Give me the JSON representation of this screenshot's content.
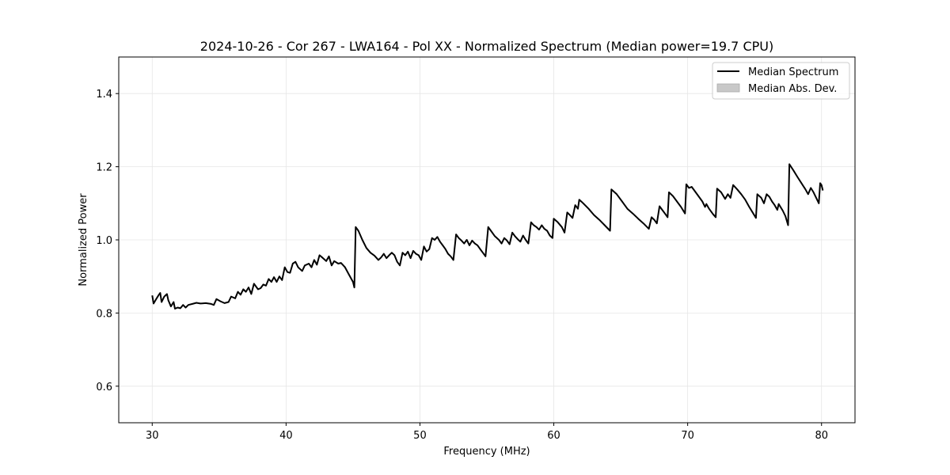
{
  "chart_data": {
    "type": "line",
    "title": "2024-10-26 - Cor 267 - LWA164 - Pol XX - Normalized Spectrum (Median power=19.7 CPU)",
    "xlabel": "Frequency (MHz)",
    "ylabel": "Normalized Power",
    "xlim": [
      27.5,
      82.5
    ],
    "ylim": [
      0.5,
      1.5
    ],
    "xticks": [
      30,
      40,
      50,
      60,
      70,
      80
    ],
    "yticks": [
      0.6,
      0.8,
      1.0,
      1.2,
      1.4
    ],
    "grid": true,
    "legend_position": "top-right",
    "legend": [
      "Median Spectrum",
      "Median Abs. Dev."
    ],
    "series": [
      {
        "name": "Median Spectrum",
        "color": "#000000",
        "points": [
          [
            30.0,
            0.848
          ],
          [
            30.1,
            0.826
          ],
          [
            30.3,
            0.838
          ],
          [
            30.5,
            0.85
          ],
          [
            30.6,
            0.855
          ],
          [
            30.7,
            0.83
          ],
          [
            30.9,
            0.845
          ],
          [
            31.1,
            0.852
          ],
          [
            31.2,
            0.835
          ],
          [
            31.4,
            0.818
          ],
          [
            31.6,
            0.83
          ],
          [
            31.7,
            0.812
          ],
          [
            31.9,
            0.815
          ],
          [
            32.1,
            0.813
          ],
          [
            32.3,
            0.822
          ],
          [
            32.5,
            0.815
          ],
          [
            32.7,
            0.822
          ],
          [
            33.0,
            0.825
          ],
          [
            33.3,
            0.828
          ],
          [
            33.6,
            0.826
          ],
          [
            34.0,
            0.827
          ],
          [
            34.4,
            0.825
          ],
          [
            34.6,
            0.822
          ],
          [
            34.8,
            0.838
          ],
          [
            35.1,
            0.832
          ],
          [
            35.4,
            0.827
          ],
          [
            35.7,
            0.83
          ],
          [
            35.9,
            0.845
          ],
          [
            36.2,
            0.84
          ],
          [
            36.4,
            0.858
          ],
          [
            36.6,
            0.85
          ],
          [
            36.8,
            0.865
          ],
          [
            37.0,
            0.858
          ],
          [
            37.2,
            0.87
          ],
          [
            37.4,
            0.852
          ],
          [
            37.6,
            0.88
          ],
          [
            37.9,
            0.865
          ],
          [
            38.1,
            0.868
          ],
          [
            38.3,
            0.878
          ],
          [
            38.5,
            0.875
          ],
          [
            38.7,
            0.893
          ],
          [
            38.9,
            0.885
          ],
          [
            39.1,
            0.898
          ],
          [
            39.3,
            0.885
          ],
          [
            39.5,
            0.9
          ],
          [
            39.7,
            0.89
          ],
          [
            39.9,
            0.925
          ],
          [
            40.1,
            0.912
          ],
          [
            40.3,
            0.91
          ],
          [
            40.5,
            0.935
          ],
          [
            40.7,
            0.94
          ],
          [
            40.9,
            0.925
          ],
          [
            41.2,
            0.915
          ],
          [
            41.4,
            0.93
          ],
          [
            41.7,
            0.935
          ],
          [
            41.9,
            0.925
          ],
          [
            42.1,
            0.945
          ],
          [
            42.3,
            0.932
          ],
          [
            42.5,
            0.958
          ],
          [
            42.7,
            0.952
          ],
          [
            43.0,
            0.942
          ],
          [
            43.2,
            0.955
          ],
          [
            43.4,
            0.93
          ],
          [
            43.6,
            0.942
          ],
          [
            43.9,
            0.935
          ],
          [
            44.1,
            0.937
          ],
          [
            44.4,
            0.925
          ],
          [
            44.7,
            0.905
          ],
          [
            45.0,
            0.885
          ],
          [
            45.1,
            0.87
          ],
          [
            45.2,
            1.035
          ],
          [
            45.4,
            1.025
          ],
          [
            45.7,
            1.0
          ],
          [
            46.0,
            0.978
          ],
          [
            46.3,
            0.965
          ],
          [
            46.6,
            0.957
          ],
          [
            46.9,
            0.945
          ],
          [
            47.1,
            0.952
          ],
          [
            47.3,
            0.962
          ],
          [
            47.5,
            0.95
          ],
          [
            47.7,
            0.958
          ],
          [
            47.9,
            0.965
          ],
          [
            48.1,
            0.958
          ],
          [
            48.3,
            0.94
          ],
          [
            48.5,
            0.93
          ],
          [
            48.7,
            0.965
          ],
          [
            48.9,
            0.958
          ],
          [
            49.1,
            0.968
          ],
          [
            49.3,
            0.95
          ],
          [
            49.5,
            0.97
          ],
          [
            49.7,
            0.962
          ],
          [
            49.9,
            0.958
          ],
          [
            50.1,
            0.945
          ],
          [
            50.3,
            0.982
          ],
          [
            50.5,
            0.968
          ],
          [
            50.7,
            0.975
          ],
          [
            50.9,
            1.005
          ],
          [
            51.1,
            1.0
          ],
          [
            51.3,
            1.008
          ],
          [
            51.5,
            0.995
          ],
          [
            51.7,
            0.985
          ],
          [
            51.9,
            0.975
          ],
          [
            52.1,
            0.962
          ],
          [
            52.3,
            0.955
          ],
          [
            52.5,
            0.945
          ],
          [
            52.7,
            1.015
          ],
          [
            52.9,
            1.005
          ],
          [
            53.1,
            0.998
          ],
          [
            53.3,
            0.99
          ],
          [
            53.5,
            1.0
          ],
          [
            53.7,
            0.985
          ],
          [
            53.9,
            0.998
          ],
          [
            54.1,
            0.99
          ],
          [
            54.3,
            0.985
          ],
          [
            54.5,
            0.975
          ],
          [
            54.7,
            0.965
          ],
          [
            54.9,
            0.955
          ],
          [
            55.1,
            1.035
          ],
          [
            55.3,
            1.025
          ],
          [
            55.6,
            1.01
          ],
          [
            55.9,
            1.0
          ],
          [
            56.1,
            0.99
          ],
          [
            56.3,
            1.005
          ],
          [
            56.5,
            0.998
          ],
          [
            56.7,
            0.988
          ],
          [
            56.9,
            1.02
          ],
          [
            57.1,
            1.01
          ],
          [
            57.3,
            1.002
          ],
          [
            57.5,
            0.995
          ],
          [
            57.7,
            1.012
          ],
          [
            57.9,
            1.0
          ],
          [
            58.1,
            0.99
          ],
          [
            58.3,
            1.048
          ],
          [
            58.5,
            1.04
          ],
          [
            58.7,
            1.035
          ],
          [
            58.9,
            1.028
          ],
          [
            59.1,
            1.04
          ],
          [
            59.3,
            1.03
          ],
          [
            59.5,
            1.025
          ],
          [
            59.7,
            1.012
          ],
          [
            59.9,
            1.005
          ],
          [
            60.0,
            1.058
          ],
          [
            60.3,
            1.048
          ],
          [
            60.6,
            1.035
          ],
          [
            60.8,
            1.02
          ],
          [
            61.0,
            1.075
          ],
          [
            61.2,
            1.068
          ],
          [
            61.4,
            1.06
          ],
          [
            61.6,
            1.095
          ],
          [
            61.8,
            1.085
          ],
          [
            61.9,
            1.11
          ],
          [
            62.2,
            1.1
          ],
          [
            62.6,
            1.085
          ],
          [
            63.0,
            1.068
          ],
          [
            63.4,
            1.055
          ],
          [
            63.8,
            1.04
          ],
          [
            64.2,
            1.025
          ],
          [
            64.3,
            1.138
          ],
          [
            64.7,
            1.125
          ],
          [
            65.1,
            1.105
          ],
          [
            65.5,
            1.085
          ],
          [
            65.9,
            1.072
          ],
          [
            66.3,
            1.058
          ],
          [
            66.7,
            1.045
          ],
          [
            67.1,
            1.03
          ],
          [
            67.3,
            1.062
          ],
          [
            67.5,
            1.055
          ],
          [
            67.7,
            1.045
          ],
          [
            67.9,
            1.092
          ],
          [
            68.1,
            1.082
          ],
          [
            68.3,
            1.072
          ],
          [
            68.5,
            1.062
          ],
          [
            68.6,
            1.13
          ],
          [
            68.9,
            1.12
          ],
          [
            69.2,
            1.105
          ],
          [
            69.5,
            1.09
          ],
          [
            69.8,
            1.072
          ],
          [
            69.9,
            1.152
          ],
          [
            70.1,
            1.142
          ],
          [
            70.3,
            1.145
          ],
          [
            70.5,
            1.135
          ],
          [
            70.8,
            1.12
          ],
          [
            71.1,
            1.105
          ],
          [
            71.3,
            1.09
          ],
          [
            71.4,
            1.098
          ],
          [
            71.6,
            1.085
          ],
          [
            71.9,
            1.07
          ],
          [
            72.1,
            1.062
          ],
          [
            72.2,
            1.14
          ],
          [
            72.5,
            1.13
          ],
          [
            72.8,
            1.112
          ],
          [
            73.0,
            1.125
          ],
          [
            73.2,
            1.115
          ],
          [
            73.4,
            1.15
          ],
          [
            73.7,
            1.138
          ],
          [
            74.0,
            1.125
          ],
          [
            74.3,
            1.11
          ],
          [
            74.6,
            1.09
          ],
          [
            74.9,
            1.072
          ],
          [
            75.1,
            1.06
          ],
          [
            75.2,
            1.125
          ],
          [
            75.5,
            1.115
          ],
          [
            75.7,
            1.1
          ],
          [
            75.9,
            1.125
          ],
          [
            76.1,
            1.118
          ],
          [
            76.3,
            1.105
          ],
          [
            76.5,
            1.095
          ],
          [
            76.7,
            1.082
          ],
          [
            76.8,
            1.098
          ],
          [
            77.1,
            1.08
          ],
          [
            77.3,
            1.065
          ],
          [
            77.5,
            1.04
          ],
          [
            77.6,
            1.207
          ],
          [
            77.9,
            1.19
          ],
          [
            78.2,
            1.172
          ],
          [
            78.5,
            1.155
          ],
          [
            78.8,
            1.138
          ],
          [
            79.0,
            1.125
          ],
          [
            79.2,
            1.142
          ],
          [
            79.4,
            1.13
          ],
          [
            79.6,
            1.115
          ],
          [
            79.8,
            1.1
          ],
          [
            79.9,
            1.155
          ],
          [
            80.0,
            1.15
          ],
          [
            80.1,
            1.135
          ]
        ]
      },
      {
        "name": "Median Abs. Dev.",
        "color": "#c8c8c8",
        "points": []
      }
    ]
  }
}
